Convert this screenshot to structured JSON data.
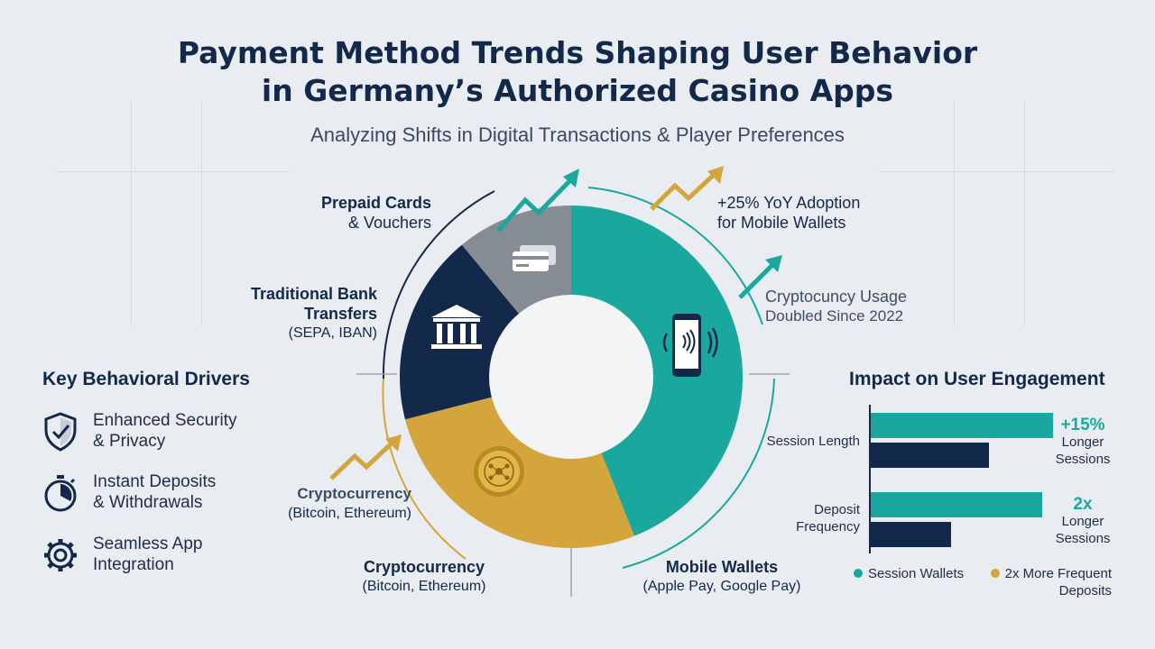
{
  "header": {
    "title_line1": "Payment Method Trends Shaping User Behavior",
    "title_line2": "in Germany’s Authorized Casino Apps",
    "subtitle": "Analyzing Shifts in Digital Transactions & Player Preferences"
  },
  "donut_labels": {
    "prepaid_title": "Prepaid Cards",
    "prepaid_sub": "& Vouchers",
    "bank_title_1": "Traditional Bank",
    "bank_title_2": "Transfers",
    "bank_sub": "(SEPA, IBAN)",
    "crypto_side_title": "Cryptocurrency",
    "crypto_side_sub": "(Bitcoin, Ethereum)",
    "crypto_bottom_title": "Cryptocurrency",
    "crypto_bottom_sub": "(Bitcoin, Ethereum)",
    "mobile_title": "Mobile Wallets",
    "mobile_sub": "(Apple Pay, Google Pay)"
  },
  "callouts": {
    "yoy_line1": "+25% YoY Adoption",
    "yoy_line2": "for Mobile Wallets",
    "crypto_line1": "Cryptocuncy Usage",
    "crypto_line2": "Doubled Since 2022"
  },
  "drivers": {
    "title": "Key Behavioral Drivers",
    "items": [
      {
        "line1": "Enhanced Security",
        "line2": "& Privacy",
        "icon": "shield-check-icon"
      },
      {
        "line1": "Instant Deposits",
        "line2": "& Withdrawals",
        "icon": "stopwatch-icon"
      },
      {
        "line1": "Seamless App",
        "line2": "Integration",
        "icon": "gear-icon"
      }
    ]
  },
  "impact": {
    "title": "Impact on User Engagement",
    "rows": [
      {
        "label_1": "Session Length",
        "label_2": "",
        "note_big": "+15%",
        "note_1": "Longer",
        "note_2": "Sessions"
      },
      {
        "label_1": "Deposit",
        "label_2": "Frequency",
        "note_big": "2x",
        "note_1": "Longer",
        "note_2": "Sessions"
      }
    ],
    "legend": [
      {
        "text": "Session Wallets",
        "color": "#1aa89e"
      },
      {
        "text": "2x More Frequent",
        "text2": "Deposits",
        "color": "#d4a53c"
      }
    ]
  },
  "colors": {
    "teal": "#1aa89e",
    "navy": "#13294b",
    "gold": "#d4a53c",
    "gray": "#868c93"
  },
  "chart_data": [
    {
      "type": "pie",
      "title": "",
      "categories": [
        "Mobile Wallets",
        "Cryptocurrency",
        "Traditional Bank Transfers",
        "Prepaid Cards & Vouchers"
      ],
      "values": [
        44,
        27,
        18,
        11
      ],
      "colors": [
        "#1aa89e",
        "#d4a53c",
        "#13294b",
        "#868c93"
      ]
    },
    {
      "type": "bar",
      "orientation": "horizontal",
      "title": "Impact on User Engagement",
      "categories": [
        "Session Length",
        "Deposit Frequency"
      ],
      "series": [
        {
          "name": "Session Wallets",
          "values": [
            100,
            94
          ]
        },
        {
          "values": [
            65,
            44
          ]
        }
      ],
      "xlim": [
        0,
        100
      ]
    }
  ]
}
